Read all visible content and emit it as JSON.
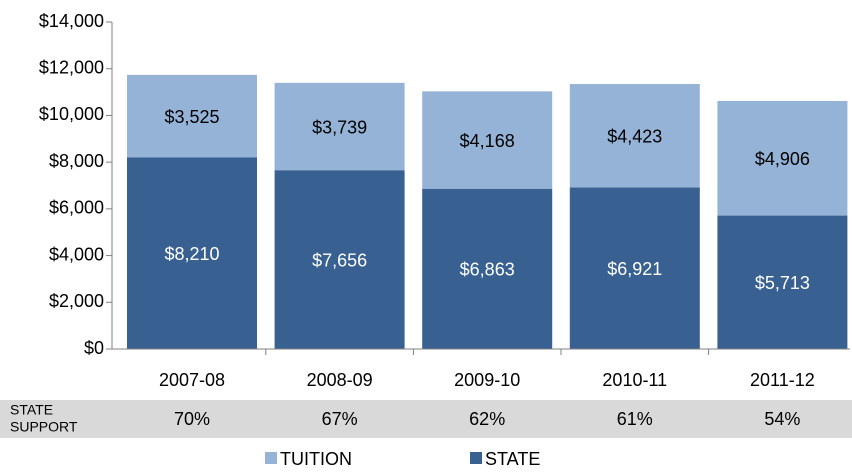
{
  "chart_data": {
    "type": "stacked_bar",
    "categories": [
      "2007-08",
      "2008-09",
      "2009-10",
      "2010-11",
      "2011-12"
    ],
    "series": [
      {
        "name": "STATE",
        "color": "#386192",
        "values": [
          8210,
          7656,
          6863,
          6921,
          5713
        ],
        "value_labels": [
          "$8,210",
          "$7,656",
          "$6,863",
          "$6,921",
          "$5,713"
        ]
      },
      {
        "name": "TUITION",
        "color": "#95b3d7",
        "values": [
          3525,
          3739,
          4168,
          4423,
          4906
        ],
        "value_labels": [
          "$3,525",
          "$3,739",
          "$4,168",
          "$4,423",
          "$4,906"
        ]
      }
    ],
    "ylim": [
      0,
      14000
    ],
    "yticks": [
      {
        "value": 0,
        "label": "$0"
      },
      {
        "value": 2000,
        "label": "$2,000"
      },
      {
        "value": 4000,
        "label": "$4,000"
      },
      {
        "value": 6000,
        "label": "$6,000"
      },
      {
        "value": 8000,
        "label": "$8,000"
      },
      {
        "value": 10000,
        "label": "$10,000"
      },
      {
        "value": 12000,
        "label": "$12,000"
      },
      {
        "value": 14000,
        "label": "$14,000"
      }
    ],
    "grid": false,
    "state_support": {
      "label_lines": [
        "STATE",
        "SUPPORT"
      ],
      "values": [
        "70%",
        "67%",
        "62%",
        "61%",
        "54%"
      ]
    }
  }
}
